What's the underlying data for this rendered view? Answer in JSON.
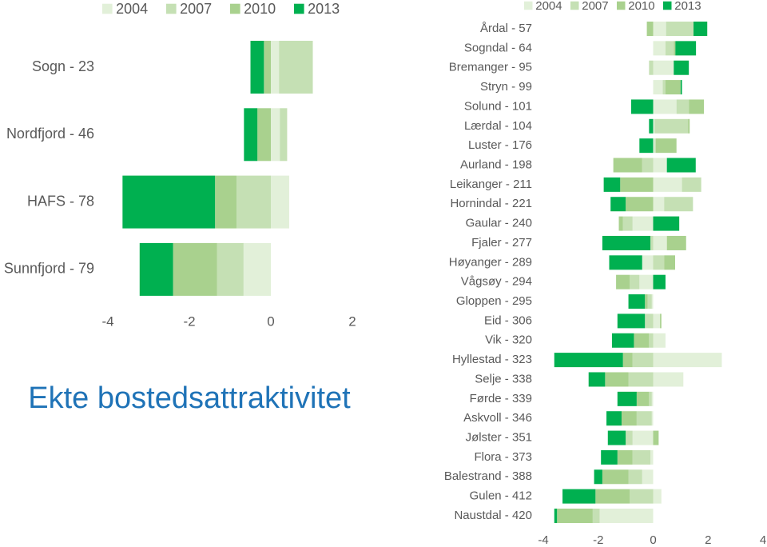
{
  "chart_data": [
    {
      "type": "bar",
      "orientation": "horizontal",
      "stacked": true,
      "title": "Ekte bostedsattraktivitet",
      "categories": [
        "Sogn - 23",
        "Nordfjord - 46",
        "HAFS - 78",
        "Sunnfjord - 79"
      ],
      "series": [
        {
          "name": "2004",
          "color": "#e2f0d9",
          "values": [
            0.2,
            0.22,
            0.45,
            -0.67
          ]
        },
        {
          "name": "2007",
          "color": "#c5e0b4",
          "values": [
            0.83,
            0.18,
            -0.84,
            -0.65
          ]
        },
        {
          "name": "2010",
          "color": "#a9d18e",
          "values": [
            -0.17,
            -0.33,
            -0.53,
            -1.08
          ]
        },
        {
          "name": "2013",
          "color": "#00b050",
          "values": [
            -0.33,
            -0.33,
            -2.27,
            -0.82
          ]
        }
      ],
      "xlim": [
        -4,
        2
      ],
      "xticks": [
        -4,
        -2,
        0,
        2
      ],
      "legend": "top"
    },
    {
      "type": "bar",
      "orientation": "horizontal",
      "stacked": true,
      "categories": [
        "Årdal - 57",
        "Sogndal - 64",
        "Bremanger - 95",
        "Stryn - 99",
        "Solund - 101",
        "Lærdal - 104",
        "Luster - 176",
        "Aurland - 198",
        "Leikanger - 211",
        "Hornindal - 221",
        "Gaular - 240",
        "Fjaler - 277",
        "Høyanger - 289",
        "Vågsøy - 294",
        "Gloppen - 295",
        "Eid - 306",
        "Vik - 320",
        "Hyllestad - 323",
        "Selje - 338",
        "Førde - 339",
        "Askvoll - 346",
        "Jølster - 351",
        "Flora - 373",
        "Balestrand - 388",
        "Gulen - 412",
        "Naustdal - 420"
      ],
      "series": [
        {
          "name": "2004",
          "color": "#e2f0d9",
          "values": [
            0.47,
            0.45,
            0.75,
            0.35,
            0.85,
            0.05,
            0.05,
            0.5,
            1.05,
            0.4,
            -0.75,
            0.5,
            -0.4,
            -0.5,
            -0.05,
            0.25,
            0.45,
            2.5,
            1.1,
            -0.05,
            -0.05,
            -0.75,
            -0.1,
            -0.4,
            0.3,
            -1.95
          ]
        },
        {
          "name": "2007",
          "color": "#c5e0b4",
          "values": [
            1.0,
            0.3,
            -0.15,
            0.1,
            0.45,
            1.22,
            0.05,
            -0.4,
            0.7,
            1.05,
            -0.35,
            -0.1,
            0.4,
            -0.35,
            -0.15,
            -0.3,
            -0.15,
            -0.75,
            -0.9,
            -0.1,
            -0.55,
            -0.25,
            -0.65,
            -0.5,
            -0.85,
            -0.25
          ]
        },
        {
          "name": "2010",
          "color": "#a9d18e",
          "values": [
            -0.23,
            0.06,
            0.0,
            0.55,
            0.55,
            0.06,
            0.75,
            -1.05,
            -1.2,
            -1.0,
            -0.15,
            0.7,
            0.4,
            -0.5,
            -0.1,
            0.05,
            -0.55,
            -0.35,
            -0.85,
            -0.45,
            -0.55,
            0.2,
            -0.55,
            -0.95,
            -1.25,
            -1.3
          ]
        },
        {
          "name": "2013",
          "color": "#00b050",
          "values": [
            0.5,
            0.75,
            0.55,
            0.05,
            -0.8,
            -0.15,
            -0.5,
            1.05,
            -0.6,
            -0.55,
            0.95,
            -1.75,
            -1.2,
            0.45,
            -0.6,
            -1.0,
            -0.8,
            -2.5,
            -0.6,
            -0.7,
            -0.55,
            -0.65,
            -0.6,
            -0.3,
            -1.2,
            -0.1
          ]
        }
      ],
      "xlim": [
        -4,
        4
      ],
      "xticks": [
        -4,
        -2,
        0,
        2,
        4
      ],
      "legend": "top"
    }
  ]
}
